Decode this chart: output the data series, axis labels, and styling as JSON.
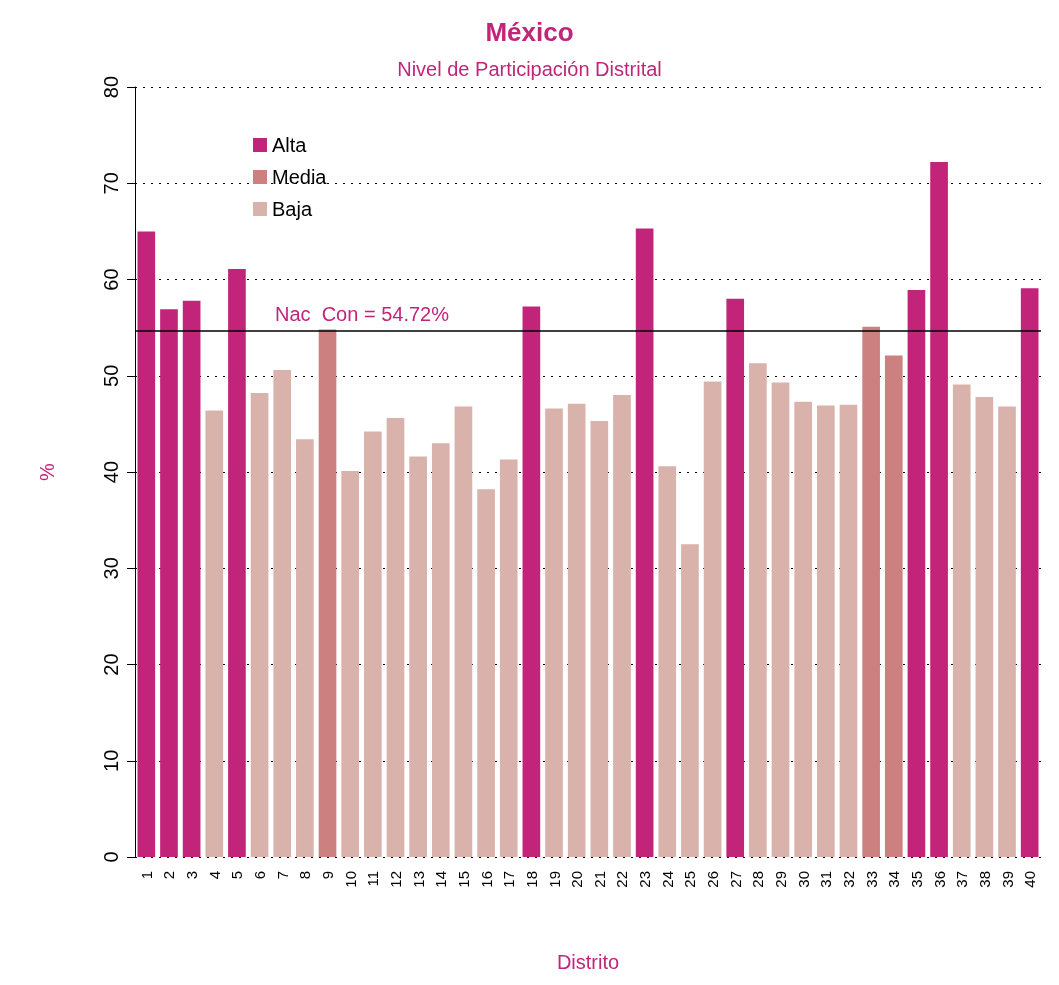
{
  "chart_data": {
    "type": "bar",
    "title": "México",
    "subtitle": "Nivel de Participación Distrital",
    "xlabel": "Distrito",
    "ylabel": "%",
    "categories": [
      "1",
      "2",
      "3",
      "4",
      "5",
      "6",
      "7",
      "8",
      "9",
      "10",
      "11",
      "12",
      "13",
      "14",
      "15",
      "16",
      "17",
      "18",
      "19",
      "20",
      "21",
      "22",
      "23",
      "24",
      "25",
      "26",
      "27",
      "28",
      "29",
      "30",
      "31",
      "32",
      "33",
      "34",
      "35",
      "36",
      "37",
      "38",
      "39",
      "40"
    ],
    "series": [
      {
        "name": "Alta",
        "color": "#c2247a",
        "values": [
          65.0,
          56.9,
          57.8,
          null,
          61.1,
          null,
          null,
          null,
          null,
          null,
          null,
          null,
          null,
          null,
          null,
          null,
          null,
          57.2,
          null,
          null,
          null,
          null,
          65.3,
          null,
          null,
          null,
          58.0,
          null,
          null,
          null,
          null,
          null,
          null,
          null,
          58.9,
          72.2,
          null,
          null,
          null,
          59.1
        ]
      },
      {
        "name": "Media",
        "color": "#cc8080",
        "values": [
          null,
          null,
          null,
          null,
          null,
          null,
          null,
          null,
          54.8,
          null,
          null,
          null,
          null,
          null,
          null,
          null,
          null,
          null,
          null,
          null,
          null,
          null,
          null,
          null,
          null,
          null,
          null,
          null,
          null,
          null,
          null,
          null,
          55.1,
          52.1,
          null,
          null,
          null,
          null,
          null,
          null
        ]
      },
      {
        "name": "Baja",
        "color": "#d9b2ab",
        "values": [
          null,
          null,
          null,
          46.4,
          null,
          48.2,
          50.6,
          43.4,
          null,
          40.1,
          44.2,
          45.6,
          41.6,
          43.0,
          46.8,
          38.2,
          41.3,
          null,
          46.6,
          47.1,
          45.3,
          48.0,
          null,
          40.6,
          32.5,
          49.4,
          null,
          51.3,
          49.3,
          47.3,
          46.9,
          47.0,
          null,
          null,
          null,
          null,
          49.1,
          47.8,
          46.8,
          null
        ]
      }
    ],
    "ylim": [
      0,
      80
    ],
    "yticks": [
      0,
      10,
      20,
      30,
      40,
      50,
      60,
      70,
      80
    ],
    "grid": "y",
    "legend": "top left",
    "ref_lines": [
      {
        "axis": "y",
        "value": 54.72,
        "label": "Nac  Con = 54.72%",
        "color": "#000000"
      }
    ]
  }
}
